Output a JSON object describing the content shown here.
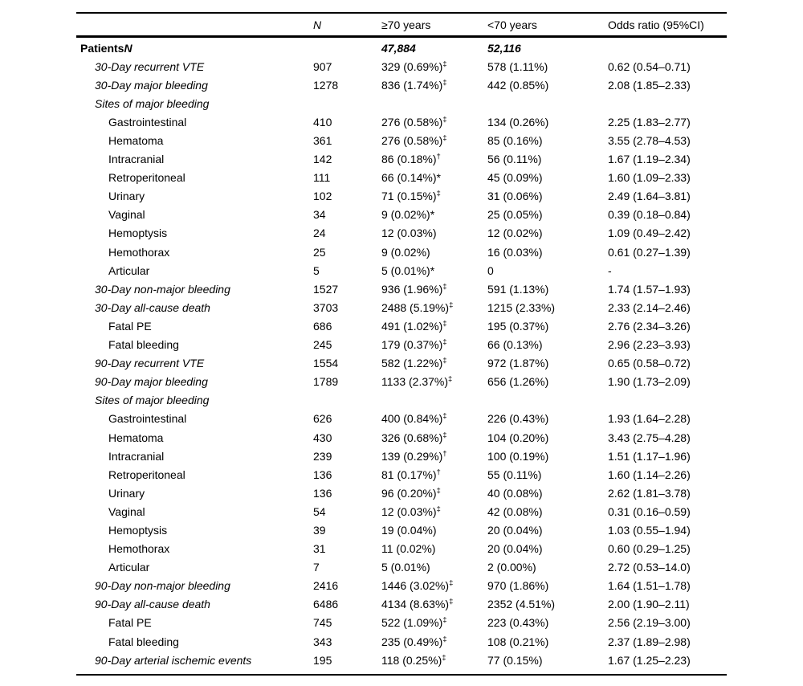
{
  "table": {
    "header": {
      "label": "",
      "n": "N",
      "ge70": "≥70 years",
      "lt70": "<70 years",
      "or": "Odds ratio (95%CI)"
    },
    "rows": [
      {
        "label": "Patients",
        "label_suffix": "N",
        "indent": 0,
        "style": "bold",
        "value_style": "emph",
        "n": "",
        "ge70": "47,884",
        "ge70_mark": "",
        "lt70": "52,116",
        "or": ""
      },
      {
        "label": "30-Day recurrent VTE",
        "indent": 1,
        "style": "italic",
        "n": "907",
        "ge70": "329 (0.69%)",
        "ge70_mark": "‡",
        "lt70": "578 (1.11%)",
        "or": "0.62 (0.54–0.71)"
      },
      {
        "label": "30-Day major bleeding",
        "indent": 1,
        "style": "italic",
        "n": "1278",
        "ge70": "836 (1.74%)",
        "ge70_mark": "‡",
        "lt70": "442 (0.85%)",
        "or": "2.08 (1.85–2.33)"
      },
      {
        "label": "Sites of major bleeding",
        "indent": 1,
        "style": "italic",
        "n": "",
        "ge70": "",
        "ge70_mark": "",
        "lt70": "",
        "or": ""
      },
      {
        "label": "Gastrointestinal",
        "indent": 2,
        "style": "plain",
        "n": "410",
        "ge70": "276 (0.58%)",
        "ge70_mark": "‡",
        "lt70": "134 (0.26%)",
        "or": "2.25 (1.83–2.77)"
      },
      {
        "label": "Hematoma",
        "indent": 2,
        "style": "plain",
        "n": "361",
        "ge70": "276 (0.58%)",
        "ge70_mark": "‡",
        "lt70": "85 (0.16%)",
        "or": "3.55 (2.78–4.53)"
      },
      {
        "label": "Intracranial",
        "indent": 2,
        "style": "plain",
        "n": "142",
        "ge70": "86 (0.18%)",
        "ge70_mark": "†",
        "lt70": "56 (0.11%)",
        "or": "1.67 (1.19–2.34)"
      },
      {
        "label": "Retroperitoneal",
        "indent": 2,
        "style": "plain",
        "n": "111",
        "ge70": "66 (0.14%)",
        "ge70_mark": "*",
        "lt70": "45 (0.09%)",
        "or": "1.60 (1.09–2.33)"
      },
      {
        "label": "Urinary",
        "indent": 2,
        "style": "plain",
        "n": "102",
        "ge70": "71 (0.15%)",
        "ge70_mark": "‡",
        "lt70": "31 (0.06%)",
        "or": "2.49 (1.64–3.81)"
      },
      {
        "label": "Vaginal",
        "indent": 2,
        "style": "plain",
        "n": "34",
        "ge70": "9 (0.02%)",
        "ge70_mark": "*",
        "lt70": "25 (0.05%)",
        "or": "0.39 (0.18–0.84)"
      },
      {
        "label": "Hemoptysis",
        "indent": 2,
        "style": "plain",
        "n": "24",
        "ge70": "12 (0.03%)",
        "ge70_mark": "",
        "lt70": "12 (0.02%)",
        "or": "1.09 (0.49–2.42)"
      },
      {
        "label": "Hemothorax",
        "indent": 2,
        "style": "plain",
        "n": "25",
        "ge70": "9 (0.02%)",
        "ge70_mark": "",
        "lt70": "16 (0.03%)",
        "or": "0.61 (0.27–1.39)"
      },
      {
        "label": "Articular",
        "indent": 2,
        "style": "plain",
        "n": "5",
        "ge70": "5 (0.01%)",
        "ge70_mark": "*",
        "lt70": "0",
        "or": "-"
      },
      {
        "label": "30-Day non-major bleeding",
        "indent": 1,
        "style": "italic",
        "n": "1527",
        "ge70": "936 (1.96%)",
        "ge70_mark": "‡",
        "lt70": "591 (1.13%)",
        "or": "1.74 (1.57–1.93)"
      },
      {
        "label": "30-Day all-cause death",
        "indent": 1,
        "style": "italic",
        "n": "3703",
        "ge70": "2488 (5.19%)",
        "ge70_mark": "‡",
        "lt70": "1215 (2.33%)",
        "or": "2.33 (2.14–2.46)"
      },
      {
        "label": "Fatal PE",
        "indent": 2,
        "style": "plain",
        "n": "686",
        "ge70": "491 (1.02%)",
        "ge70_mark": "‡",
        "lt70": "195 (0.37%)",
        "or": "2.76 (2.34–3.26)"
      },
      {
        "label": "Fatal bleeding",
        "indent": 2,
        "style": "plain",
        "n": "245",
        "ge70": "179 (0.37%)",
        "ge70_mark": "‡",
        "lt70": "66 (0.13%)",
        "or": "2.96 (2.23–3.93)"
      },
      {
        "label": "90-Day recurrent VTE",
        "indent": 1,
        "style": "italic",
        "n": "1554",
        "ge70": "582 (1.22%)",
        "ge70_mark": "‡",
        "lt70": "972 (1.87%)",
        "or": "0.65 (0.58–0.72)"
      },
      {
        "label": "90-Day major bleeding",
        "indent": 1,
        "style": "italic",
        "n": "1789",
        "ge70": "1133 (2.37%)",
        "ge70_mark": "‡",
        "lt70": "656 (1.26%)",
        "or": "1.90 (1.73–2.09)"
      },
      {
        "label": "Sites of major bleeding",
        "indent": 1,
        "style": "italic",
        "n": "",
        "ge70": "",
        "ge70_mark": "",
        "lt70": "",
        "or": ""
      },
      {
        "label": "Gastrointestinal",
        "indent": 2,
        "style": "plain",
        "n": "626",
        "ge70": "400 (0.84%)",
        "ge70_mark": "‡",
        "lt70": "226 (0.43%)",
        "or": "1.93 (1.64–2.28)"
      },
      {
        "label": "Hematoma",
        "indent": 2,
        "style": "plain",
        "n": "430",
        "ge70": "326 (0.68%)",
        "ge70_mark": "‡",
        "lt70": "104 (0.20%)",
        "or": "3.43 (2.75–4.28)"
      },
      {
        "label": "Intracranial",
        "indent": 2,
        "style": "plain",
        "n": "239",
        "ge70": "139 (0.29%)",
        "ge70_mark": "†",
        "lt70": "100 (0.19%)",
        "or": "1.51 (1.17–1.96)"
      },
      {
        "label": "Retroperitoneal",
        "indent": 2,
        "style": "plain",
        "n": "136",
        "ge70": "81 (0.17%)",
        "ge70_mark": "†",
        "lt70": "55 (0.11%)",
        "or": "1.60 (1.14–2.26)"
      },
      {
        "label": "Urinary",
        "indent": 2,
        "style": "plain",
        "n": "136",
        "ge70": "96 (0.20%)",
        "ge70_mark": "‡",
        "lt70": "40 (0.08%)",
        "or": "2.62 (1.81–3.78)"
      },
      {
        "label": "Vaginal",
        "indent": 2,
        "style": "plain",
        "n": "54",
        "ge70": "12 (0.03%)",
        "ge70_mark": "‡",
        "lt70": "42 (0.08%)",
        "or": "0.31 (0.16–0.59)"
      },
      {
        "label": "Hemoptysis",
        "indent": 2,
        "style": "plain",
        "n": "39",
        "ge70": "19 (0.04%)",
        "ge70_mark": "",
        "lt70": "20 (0.04%)",
        "or": "1.03 (0.55–1.94)"
      },
      {
        "label": "Hemothorax",
        "indent": 2,
        "style": "plain",
        "n": "31",
        "ge70": "11 (0.02%)",
        "ge70_mark": "",
        "lt70": "20 (0.04%)",
        "or": "0.60 (0.29–1.25)"
      },
      {
        "label": "Articular",
        "indent": 2,
        "style": "plain",
        "n": "7",
        "ge70": "5 (0.01%)",
        "ge70_mark": "",
        "lt70": "2 (0.00%)",
        "or": "2.72 (0.53–14.0)"
      },
      {
        "label": "90-Day non-major bleeding",
        "indent": 1,
        "style": "italic",
        "n": "2416",
        "ge70": "1446 (3.02%)",
        "ge70_mark": "‡",
        "lt70": "970 (1.86%)",
        "or": "1.64 (1.51–1.78)"
      },
      {
        "label": "90-Day all-cause death",
        "indent": 1,
        "style": "italic",
        "n": "6486",
        "ge70": "4134 (8.63%)",
        "ge70_mark": "‡",
        "lt70": "2352 (4.51%)",
        "or": "2.00 (1.90–2.11)"
      },
      {
        "label": "Fatal PE",
        "indent": 2,
        "style": "plain",
        "n": "745",
        "ge70": "522 (1.09%)",
        "ge70_mark": "‡",
        "lt70": "223 (0.43%)",
        "or": "2.56 (2.19–3.00)"
      },
      {
        "label": "Fatal bleeding",
        "indent": 2,
        "style": "plain",
        "n": "343",
        "ge70": "235 (0.49%)",
        "ge70_mark": "‡",
        "lt70": "108 (0.21%)",
        "or": "2.37 (1.89–2.98)"
      },
      {
        "label": "90-Day arterial ischemic events",
        "indent": 1,
        "style": "italic",
        "n": "195",
        "ge70": "118 (0.25%)",
        "ge70_mark": "‡",
        "lt70": "77 (0.15%)",
        "or": "1.67 (1.25–2.23)"
      }
    ]
  }
}
